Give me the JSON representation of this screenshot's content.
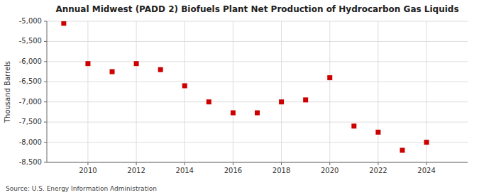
{
  "chart_data": {
    "type": "scatter",
    "title": "Annual Midwest (PADD 2) Biofuels Plant Net Production of Hydrocarbon Gas Liquids",
    "y_label": "Thousand Barrels",
    "annotations": [
      "Source: U.S. Energy Information Administration"
    ],
    "x": [
      2009,
      2010,
      2011,
      2012,
      2013,
      2014,
      2015,
      2016,
      2017,
      2018,
      2019,
      2020,
      2021,
      2022,
      2023,
      2024
    ],
    "values": [
      -5050,
      -6050,
      -6250,
      -6050,
      -6200,
      -6600,
      -7000,
      -7270,
      -7270,
      -7000,
      -6950,
      -6400,
      -7600,
      -7750,
      -8200,
      -8000
    ],
    "color": "#cc0000",
    "marker": "square",
    "xlim": [
      2008.3,
      2025.7
    ],
    "xticks": [
      2010,
      2012,
      2014,
      2016,
      2018,
      2020,
      2022,
      2024
    ],
    "ylim": [
      -8500,
      -5000
    ],
    "yticks": [
      {
        "value": -5000,
        "label": "-5,000"
      },
      {
        "value": -5500,
        "label": "-5,500"
      },
      {
        "value": -6000,
        "label": "-6,000"
      },
      {
        "value": -6500,
        "label": "-6,500"
      },
      {
        "value": -7000,
        "label": "-7,000"
      },
      {
        "value": -7500,
        "label": "-7,500"
      },
      {
        "value": -8000,
        "label": "-8,000"
      },
      {
        "value": -8500,
        "label": "-8,500"
      }
    ],
    "grid": true
  }
}
